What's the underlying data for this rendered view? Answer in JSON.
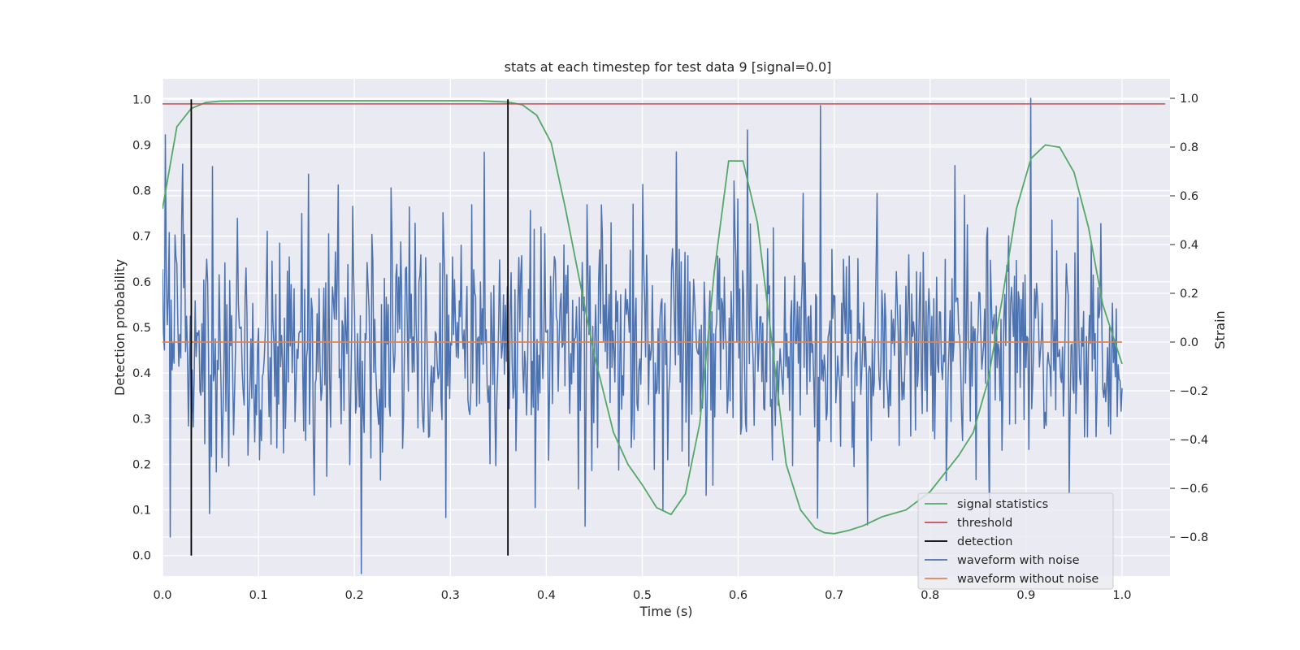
{
  "chart_data": {
    "type": "line",
    "title": "stats at each timestep for test data 9 [signal=0.0]",
    "xlabel": "Time (s)",
    "ylabel_left": "Detection probability",
    "ylabel_right": "Strain",
    "xlim": [
      0.0,
      1.05
    ],
    "ylim_left": [
      -0.045,
      1.045
    ],
    "ylim_right": [
      -0.96,
      1.08
    ],
    "x_ticks": [
      0.0,
      0.1,
      0.2,
      0.3,
      0.4,
      0.5,
      0.6,
      0.7,
      0.8,
      0.9,
      1.0
    ],
    "x_tick_labels": [
      "0.0",
      "0.1",
      "0.2",
      "0.3",
      "0.4",
      "0.5",
      "0.6",
      "0.7",
      "0.8",
      "0.9",
      "1.0"
    ],
    "y_left_ticks": [
      0.0,
      0.1,
      0.2,
      0.3,
      0.4,
      0.5,
      0.6,
      0.7,
      0.8,
      0.9,
      1.0
    ],
    "y_left_tick_labels": [
      "0.0",
      "0.1",
      "0.2",
      "0.3",
      "0.4",
      "0.5",
      "0.6",
      "0.7",
      "0.8",
      "0.9",
      "1.0"
    ],
    "y_right_ticks": [
      -0.8,
      -0.6,
      -0.4,
      -0.2,
      0.0,
      0.2,
      0.4,
      0.6,
      0.8,
      1.0
    ],
    "y_right_tick_labels": [
      "−0.8",
      "−0.6",
      "−0.4",
      "−0.2",
      "0.0",
      "0.2",
      "0.4",
      "0.6",
      "0.8",
      "1.0"
    ],
    "grid": true,
    "legend_position": "lower-right",
    "legend": [
      {
        "label": "signal statistics",
        "color": "#55a868"
      },
      {
        "label": "threshold",
        "color": "#c44e52"
      },
      {
        "label": "detection",
        "color": "#000000"
      },
      {
        "label": "waveform with noise",
        "color": "#4c72b0"
      },
      {
        "label": "waveform without noise",
        "color": "#dd8452"
      }
    ],
    "signal_statistics": {
      "x": [
        0.0,
        0.015,
        0.03,
        0.045,
        0.06,
        0.1,
        0.2,
        0.3,
        0.33,
        0.36,
        0.375,
        0.39,
        0.405,
        0.42,
        0.435,
        0.45,
        0.47,
        0.485,
        0.5,
        0.515,
        0.53,
        0.545,
        0.56,
        0.575,
        0.59,
        0.605,
        0.62,
        0.635,
        0.65,
        0.665,
        0.68,
        0.69,
        0.7,
        0.715,
        0.73,
        0.75,
        0.775,
        0.8,
        0.815,
        0.83,
        0.845,
        0.86,
        0.875,
        0.89,
        0.905,
        0.92,
        0.935,
        0.95,
        0.965,
        0.98,
        1.0
      ],
      "y": [
        0.76,
        0.94,
        0.98,
        0.993,
        0.996,
        0.997,
        0.997,
        0.997,
        0.997,
        0.994,
        0.988,
        0.965,
        0.905,
        0.76,
        0.6,
        0.44,
        0.27,
        0.2,
        0.155,
        0.105,
        0.09,
        0.135,
        0.29,
        0.62,
        0.865,
        0.865,
        0.73,
        0.47,
        0.2,
        0.1,
        0.06,
        0.05,
        0.048,
        0.055,
        0.065,
        0.085,
        0.1,
        0.14,
        0.18,
        0.22,
        0.27,
        0.38,
        0.56,
        0.76,
        0.87,
        0.9,
        0.895,
        0.84,
        0.72,
        0.55,
        0.42
      ]
    },
    "threshold": {
      "value": 0.99,
      "x_range": [
        0.0,
        1.045
      ]
    },
    "detections": [
      0.03,
      0.36
    ],
    "waveform_without_noise": {
      "value": 0.0,
      "x_range": [
        0.0,
        1.0
      ]
    },
    "waveform_with_noise": {
      "x_range": [
        0.0,
        1.0
      ],
      "n_points": 1000,
      "std": 0.25,
      "anchor_points": [
        {
          "x": 0.0035,
          "y": 0.85
        },
        {
          "x": 0.0085,
          "y": -0.8
        },
        {
          "x": 0.021,
          "y": 0.73
        },
        {
          "x": 0.052,
          "y": 0.72
        },
        {
          "x": 0.207,
          "y": -0.95
        },
        {
          "x": 0.295,
          "y": -0.72
        },
        {
          "x": 0.536,
          "y": 0.78
        },
        {
          "x": 0.61,
          "y": 0.87
        },
        {
          "x": 0.686,
          "y": 0.97
        },
        {
          "x": 0.735,
          "y": -0.75
        },
        {
          "x": 0.905,
          "y": 1.0
        },
        {
          "x": 0.862,
          "y": -0.72
        }
      ]
    }
  }
}
